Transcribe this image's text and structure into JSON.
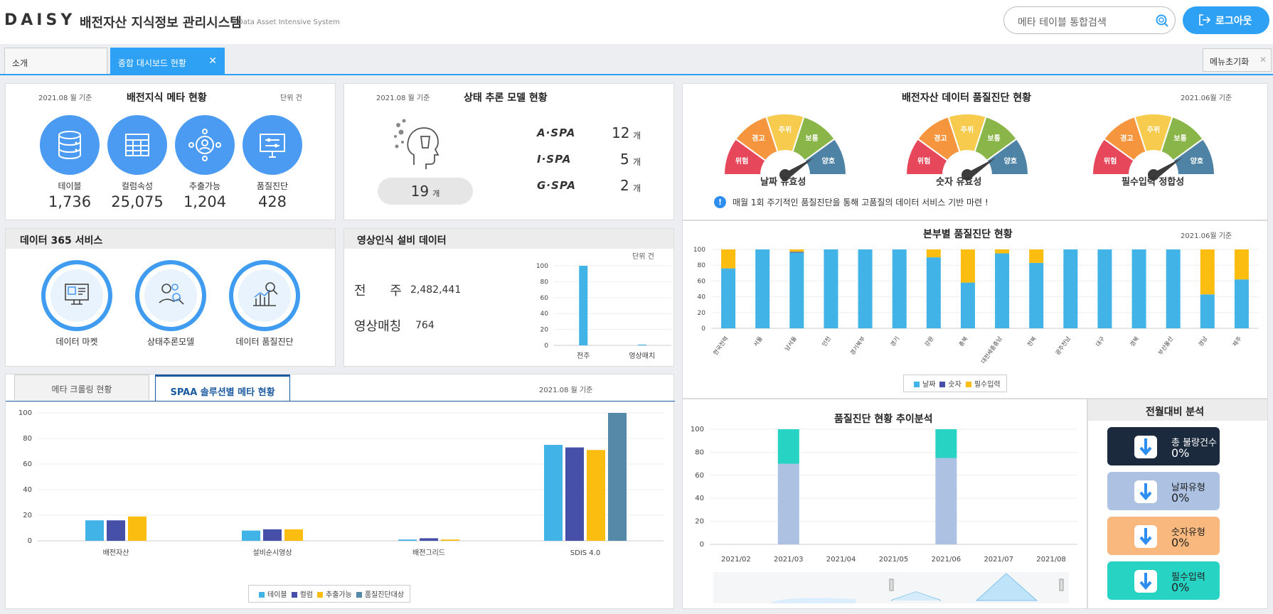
{
  "header": {
    "logo": "DAISY",
    "title": "배전자산 지식정보 관리시스템",
    "subtitle": "Data Asset Intensive System",
    "search_placeholder": "메타 테이블 통합검색",
    "logout_label": "로그아웃"
  },
  "tabs": [
    {
      "label": "소개"
    },
    {
      "label": "종합 대시보드 현황"
    }
  ],
  "reset_label": "메뉴초기화",
  "meta": {
    "date": "2021.08 월 기준",
    "title": "배전지식 메타 현황",
    "unit": "단위 건",
    "items": [
      {
        "label": "테이블",
        "value": "1,736",
        "icon": "database-icon"
      },
      {
        "label": "컬럼속성",
        "value": "25,075",
        "icon": "spreadsheet-icon"
      },
      {
        "label": "추출가능",
        "value": "1,204",
        "icon": "user-network-icon"
      },
      {
        "label": "품질진단",
        "value": "428",
        "icon": "monitor-settings-icon"
      }
    ]
  },
  "model": {
    "date": "2021.08 월 기준",
    "title": "상태 추론 모델 현황",
    "total": "19",
    "unit": "개",
    "rows": [
      {
        "name": "A·SPA",
        "value": "12"
      },
      {
        "name": "I·SPA",
        "value": "5"
      },
      {
        "name": "G·SPA",
        "value": "2"
      }
    ]
  },
  "service": {
    "title": "데이터 365 서비스",
    "items": [
      {
        "label": "데이터 마켓",
        "icon": "market-icon"
      },
      {
        "label": "상태추론모델",
        "icon": "gear-hand-icon"
      },
      {
        "label": "데이터 품질진단",
        "icon": "chart-search-icon"
      }
    ]
  },
  "video": {
    "title": "영상인식 설비 데이터",
    "unit": "단위 건",
    "rows": [
      {
        "label": "전 주",
        "value": "2,482,441"
      },
      {
        "label": "영상매칭",
        "value": "764"
      }
    ]
  },
  "spaa": {
    "tabs": [
      "메타 크롤링 현황",
      "SPAA 솔루션별 메타 현황"
    ],
    "date": "2021.08 월 기준"
  },
  "quality": {
    "title": "배전자산 데이터 품질진단 현황",
    "date": "2021.06월 기준",
    "notice": "매월 1회 주기적인 품질진단을 통해 고품질의 데이터 서비스 기반 마련 !",
    "gauge_levels": [
      "위험",
      "경고",
      "주위",
      "보통",
      "양호"
    ],
    "gauges": [
      {
        "label": "날짜 유효성"
      },
      {
        "label": "숫자 유효성"
      },
      {
        "label": "필수입력 정합성"
      }
    ]
  },
  "branch": {
    "title": "본부별 품질진단 현황",
    "date": "2021.06월 기준"
  },
  "trend": {
    "title": "품질진단 현황 추이분석"
  },
  "compare": {
    "title": "전월대비 분석",
    "items": [
      {
        "label": "총 불량건수",
        "value": "0%"
      },
      {
        "label": "날짜유형",
        "value": "0%"
      },
      {
        "label": "숫자유형",
        "value": "0%"
      },
      {
        "label": "필수입력",
        "value": "0%"
      }
    ]
  },
  "colors": {
    "accent": "#2ea1f4",
    "blue": "#41b3e6",
    "navy": "#4650a8",
    "yellow": "#fbbd10",
    "steel": "#5688a8",
    "teal": "#27d3c3",
    "lavender": "#adc2e3"
  },
  "chart_data": [
    {
      "type": "bar",
      "id": "video",
      "categories": [
        "전주",
        "영상매치"
      ],
      "values": [
        100,
        1
      ],
      "ylim": [
        0,
        100
      ],
      "yticks": [
        0,
        20,
        40,
        60,
        80,
        100
      ]
    },
    {
      "type": "bar",
      "id": "spaa",
      "categories": [
        "배전자산",
        "설비순시영상",
        "배전그리드",
        "SDIS 4.0"
      ],
      "series": [
        {
          "name": "테이블",
          "values": [
            16,
            8,
            1,
            75
          ]
        },
        {
          "name": "컬럼",
          "values": [
            16,
            9,
            2,
            73
          ]
        },
        {
          "name": "추출가능",
          "values": [
            19,
            9,
            1,
            71
          ]
        },
        {
          "name": "품질진단대상",
          "values": [
            null,
            null,
            null,
            100
          ]
        }
      ],
      "ylim": [
        0,
        100
      ],
      "yticks": [
        0,
        20,
        40,
        60,
        80,
        100
      ]
    },
    {
      "type": "bar",
      "id": "branch",
      "stacked": true,
      "categories": [
        "한국전력",
        "서울",
        "남서울",
        "인천",
        "경기북부",
        "경기",
        "강원",
        "충북",
        "대전세종충남",
        "전북",
        "광주전남",
        "대구",
        "경북",
        "부산울산",
        "경남",
        "제주"
      ],
      "series": [
        {
          "name": "날짜",
          "values": [
            76,
            100,
            96,
            100,
            100,
            100,
            90,
            58,
            95,
            83,
            100,
            100,
            100,
            100,
            43,
            62
          ]
        },
        {
          "name": "숫자",
          "values": [
            0,
            0,
            1,
            0,
            0,
            0,
            0,
            0,
            0,
            0,
            0,
            0,
            0,
            0,
            0,
            0
          ]
        },
        {
          "name": "필수입력",
          "values": [
            24,
            0,
            3,
            0,
            0,
            0,
            10,
            42,
            5,
            17,
            0,
            0,
            0,
            0,
            57,
            38
          ]
        }
      ],
      "ylim": [
        0,
        100
      ],
      "yticks": [
        0,
        20,
        40,
        60,
        80,
        100
      ]
    },
    {
      "type": "bar",
      "id": "trend",
      "stacked": true,
      "categories": [
        "2021/02",
        "2021/03",
        "2021/04",
        "2021/05",
        "2021/06",
        "2021/07",
        "2021/08"
      ],
      "series": [
        {
          "name": "lower",
          "values": [
            null,
            70,
            null,
            null,
            75,
            null,
            null
          ]
        },
        {
          "name": "upper",
          "values": [
            null,
            30,
            null,
            null,
            25,
            null,
            null
          ]
        }
      ],
      "ylim": [
        0,
        100
      ],
      "yticks": [
        0,
        20,
        40,
        60,
        80,
        100
      ]
    }
  ]
}
